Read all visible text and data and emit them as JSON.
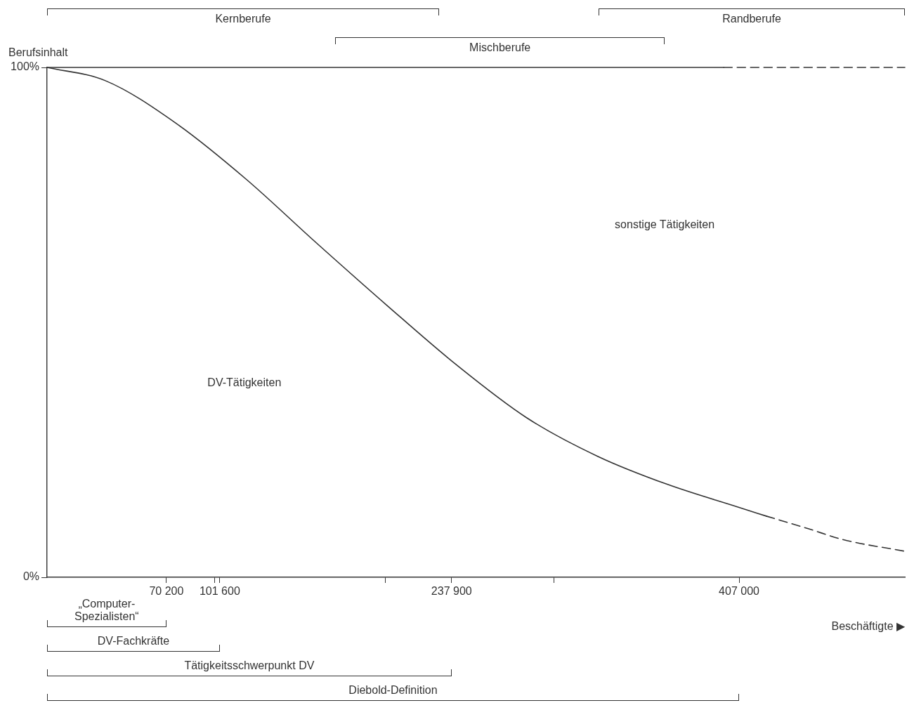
{
  "chart_data": {
    "type": "line",
    "ylabel": "Berufsinhalt",
    "xlabel": "Beschäftigte ▶",
    "xlim": [
      0,
      504500
    ],
    "ylim": [
      0,
      100
    ],
    "xticks": [
      {
        "value": 70200,
        "label": "70 200"
      },
      {
        "value": 98400,
        "label": null
      },
      {
        "value": 101600,
        "label": "101 600"
      },
      {
        "value": 199000,
        "label": null
      },
      {
        "value": 237900,
        "label": "237 900"
      },
      {
        "value": 298000,
        "label": null
      },
      {
        "value": 407000,
        "label": "407 000"
      }
    ],
    "yticks": [
      {
        "value": 0,
        "label": "0%"
      },
      {
        "value": 100,
        "label": "100%"
      }
    ],
    "series": [
      {
        "color": "#333333",
        "line_style": "solid",
        "x": [
          0,
          34300,
          75600,
          117000,
          158000,
          200000,
          241000,
          282000,
          324000,
          365000,
          406000,
          423000
        ],
        "values": [
          100,
          97.4,
          89.1,
          78.1,
          65.7,
          53.3,
          41.6,
          31.3,
          23.7,
          18.2,
          13.8,
          12.0
        ]
      },
      {
        "color": "#333333",
        "line_style": "dashed",
        "x": [
          423000,
          448000,
          468000,
          504500
        ],
        "values": [
          12.0,
          9.5,
          7.4,
          5.1
        ]
      },
      {
        "color": "#333333",
        "line_style": "solid",
        "x": [
          0,
          398000
        ],
        "values": [
          100,
          100
        ]
      },
      {
        "color": "#333333",
        "line_style": "dashed",
        "x": [
          398000,
          504500
        ],
        "values": [
          100,
          100
        ]
      }
    ],
    "annotations": [
      "Kernberufe",
      "Mischberufe",
      "Randberufe",
      "DV-Tätigkeiten",
      "sonstige Tätigkeiten",
      "„Computer-Spezialisten“",
      "DV-Fachkräfte",
      "Tätigkeitsschwerpunkt DV",
      "Diebold-Definition"
    ],
    "marker": "none",
    "grid": false,
    "legend": false
  }
}
